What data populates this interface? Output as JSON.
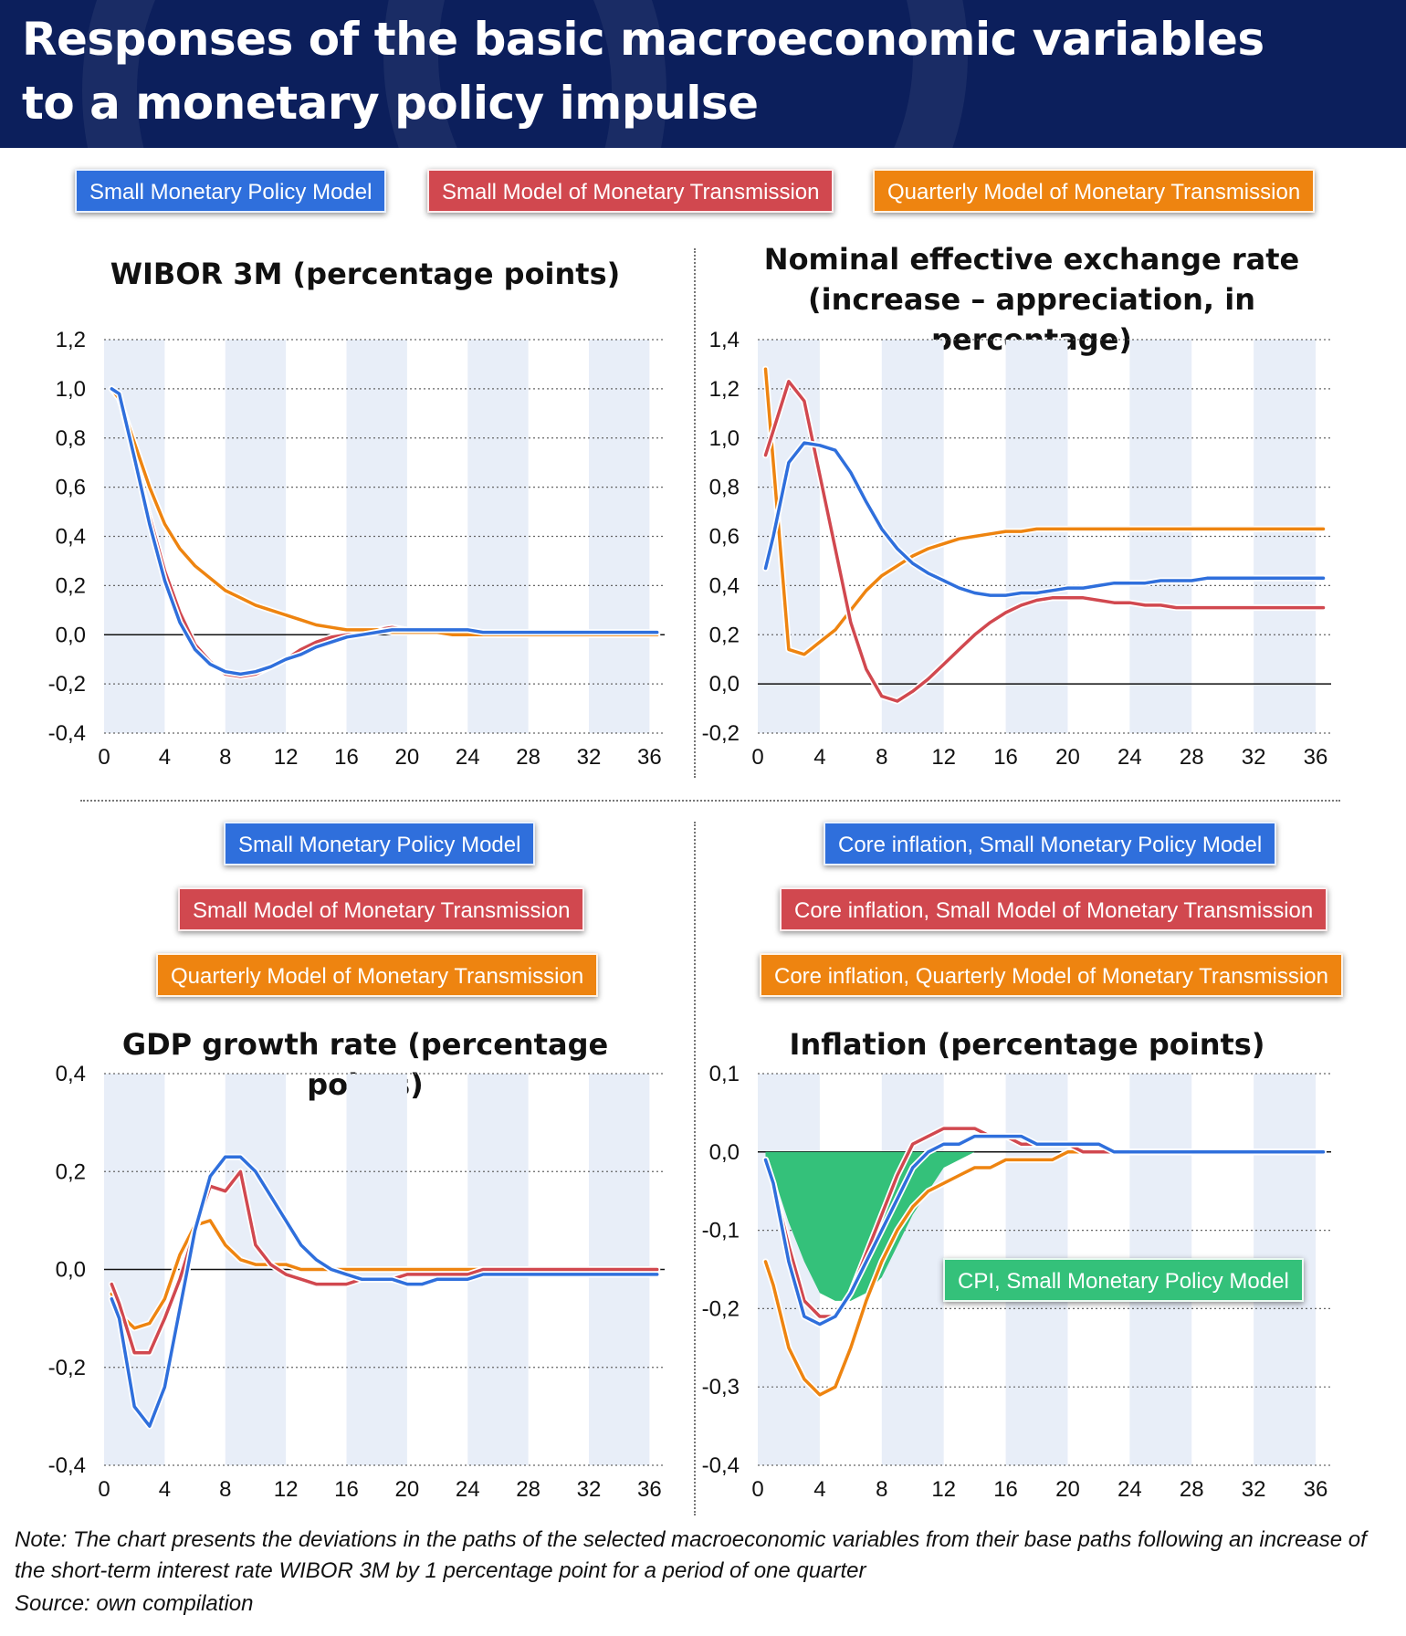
{
  "header": {
    "title_line1": "Responses of the basic macroeconomic variables",
    "title_line2": "to a monetary policy impulse"
  },
  "legend_top": {
    "blue": "Small Monetary Policy Model",
    "red": "Small Model of Monetary Transmission",
    "orange": "Quarterly Model of Monetary Transmission"
  },
  "legend_gdp": {
    "blue": "Small Monetary Policy Model",
    "red": "Small Model of Monetary Transmission",
    "orange": "Quarterly Model of Monetary Transmission"
  },
  "legend_inflation": {
    "blue": "Core inflation, Small Monetary Policy Model",
    "red": "Core inflation, Small Model of Monetary Transmission",
    "orange": "Core inflation, Quarterly Model of Monetary Transmission",
    "green": "CPI, Small Monetary Policy Model"
  },
  "colors": {
    "blue": "#2f6fdc",
    "red": "#d1484f",
    "orange": "#ee8410",
    "green": "#34c17a",
    "band": "#e8eef8",
    "header": "#0c1f5c"
  },
  "footnote": "Note: The chart presents the deviations in the paths of the selected macroeconomic variables from their base paths following an increase of the short-term interest rate WIBOR 3M by 1 percentage point for a period of one quarter",
  "source": "Source: own compilation",
  "chart_data": [
    {
      "id": "wibor",
      "type": "line",
      "title": "WIBOR 3M (percentage points)",
      "xlim": [
        0,
        37
      ],
      "ylim": [
        -0.4,
        1.2
      ],
      "xticks": [
        0,
        4,
        8,
        12,
        16,
        20,
        24,
        28,
        32,
        36
      ],
      "yticks": [
        -0.4,
        -0.2,
        0.0,
        0.2,
        0.4,
        0.6,
        0.8,
        1.0,
        1.2
      ],
      "ytick_labels": [
        "-0,4",
        "-0,2",
        "0,0",
        "0,2",
        "0,4",
        "0,6",
        "0,8",
        "1,0",
        "1,2"
      ],
      "x": [
        0.5,
        1,
        2,
        3,
        4,
        5,
        6,
        7,
        8,
        9,
        10,
        11,
        12,
        13,
        14,
        15,
        16,
        17,
        18,
        19,
        20,
        21,
        22,
        23,
        24,
        25,
        26,
        27,
        28,
        29,
        30,
        31,
        32,
        33,
        34,
        35,
        36,
        36.5
      ],
      "series": [
        {
          "color": "red",
          "values": [
            1.0,
            0.97,
            0.72,
            0.48,
            0.26,
            0.09,
            -0.04,
            -0.11,
            -0.16,
            -0.17,
            -0.16,
            -0.13,
            -0.1,
            -0.06,
            -0.03,
            -0.01,
            0.0,
            0.01,
            0.02,
            0.03,
            0.02,
            0.02,
            0.02,
            0.02,
            0.01,
            0.01,
            0.0,
            0.0,
            0.0,
            0.0,
            0.0,
            0.0,
            0.0,
            0.0,
            0.0,
            0.0,
            0.0,
            0.0
          ]
        },
        {
          "color": "orange",
          "values": [
            1.0,
            0.96,
            0.78,
            0.6,
            0.45,
            0.35,
            0.28,
            0.23,
            0.18,
            0.15,
            0.12,
            0.1,
            0.08,
            0.06,
            0.04,
            0.03,
            0.02,
            0.02,
            0.02,
            0.01,
            0.01,
            0.01,
            0.01,
            0.0,
            0.0,
            0.0,
            0.0,
            0.0,
            0.0,
            0.0,
            0.0,
            0.0,
            0.0,
            0.0,
            0.0,
            0.0,
            0.0,
            0.0
          ]
        },
        {
          "color": "blue",
          "values": [
            1.0,
            0.98,
            0.72,
            0.45,
            0.22,
            0.05,
            -0.06,
            -0.12,
            -0.15,
            -0.16,
            -0.15,
            -0.13,
            -0.1,
            -0.08,
            -0.05,
            -0.03,
            -0.01,
            0.0,
            0.01,
            0.02,
            0.02,
            0.02,
            0.02,
            0.02,
            0.02,
            0.01,
            0.01,
            0.01,
            0.01,
            0.01,
            0.01,
            0.01,
            0.01,
            0.01,
            0.01,
            0.01,
            0.01,
            0.01
          ]
        }
      ]
    },
    {
      "id": "exchange",
      "type": "line",
      "title_line1": "Nominal effective exchange rate",
      "title_line2": "(increase – appreciation, in percentage)",
      "xlim": [
        0,
        37
      ],
      "ylim": [
        -0.2,
        1.4
      ],
      "xticks": [
        0,
        4,
        8,
        12,
        16,
        20,
        24,
        28,
        32,
        36
      ],
      "yticks": [
        -0.2,
        0.0,
        0.2,
        0.4,
        0.6,
        0.8,
        1.0,
        1.2,
        1.4
      ],
      "ytick_labels": [
        "-0,2",
        "0,0",
        "0,2",
        "0,4",
        "0,6",
        "0,8",
        "1,0",
        "1,2",
        "1,4"
      ],
      "x": [
        0.5,
        1,
        2,
        3,
        4,
        5,
        6,
        7,
        8,
        9,
        10,
        11,
        12,
        13,
        14,
        15,
        16,
        17,
        18,
        19,
        20,
        21,
        22,
        23,
        24,
        25,
        26,
        27,
        28,
        29,
        30,
        31,
        32,
        33,
        34,
        35,
        36,
        36.5
      ],
      "series": [
        {
          "color": "orange",
          "values": [
            1.28,
            0.9,
            0.14,
            0.12,
            0.17,
            0.22,
            0.3,
            0.38,
            0.44,
            0.48,
            0.52,
            0.55,
            0.57,
            0.59,
            0.6,
            0.61,
            0.62,
            0.62,
            0.63,
            0.63,
            0.63,
            0.63,
            0.63,
            0.63,
            0.63,
            0.63,
            0.63,
            0.63,
            0.63,
            0.63,
            0.63,
            0.63,
            0.63,
            0.63,
            0.63,
            0.63,
            0.63,
            0.63
          ]
        },
        {
          "color": "red",
          "values": [
            0.93,
            1.03,
            1.23,
            1.15,
            0.85,
            0.55,
            0.25,
            0.06,
            -0.05,
            -0.07,
            -0.03,
            0.02,
            0.08,
            0.14,
            0.2,
            0.25,
            0.29,
            0.32,
            0.34,
            0.35,
            0.35,
            0.35,
            0.34,
            0.33,
            0.33,
            0.32,
            0.32,
            0.31,
            0.31,
            0.31,
            0.31,
            0.31,
            0.31,
            0.31,
            0.31,
            0.31,
            0.31,
            0.31
          ]
        },
        {
          "color": "blue",
          "values": [
            0.47,
            0.6,
            0.9,
            0.98,
            0.97,
            0.95,
            0.86,
            0.74,
            0.63,
            0.55,
            0.49,
            0.45,
            0.42,
            0.39,
            0.37,
            0.36,
            0.36,
            0.37,
            0.37,
            0.38,
            0.39,
            0.39,
            0.4,
            0.41,
            0.41,
            0.41,
            0.42,
            0.42,
            0.42,
            0.43,
            0.43,
            0.43,
            0.43,
            0.43,
            0.43,
            0.43,
            0.43,
            0.43
          ]
        }
      ]
    },
    {
      "id": "gdp",
      "type": "line",
      "title": "GDP growth rate (percentage points)",
      "xlim": [
        0,
        37
      ],
      "ylim": [
        -0.4,
        0.4
      ],
      "xticks": [
        0,
        4,
        8,
        12,
        16,
        20,
        24,
        28,
        32,
        36
      ],
      "yticks": [
        -0.4,
        -0.2,
        0.0,
        0.2,
        0.4
      ],
      "ytick_labels": [
        "-0,4",
        "-0,2",
        "0,0",
        "0,2",
        "0,4"
      ],
      "x": [
        0.5,
        1,
        2,
        3,
        4,
        5,
        6,
        7,
        8,
        9,
        10,
        11,
        12,
        13,
        14,
        15,
        16,
        17,
        18,
        19,
        20,
        21,
        22,
        23,
        24,
        25,
        26,
        27,
        28,
        29,
        30,
        31,
        32,
        33,
        34,
        35,
        36,
        36.5
      ],
      "series": [
        {
          "color": "orange",
          "values": [
            -0.05,
            -0.09,
            -0.12,
            -0.11,
            -0.06,
            0.03,
            0.09,
            0.1,
            0.05,
            0.02,
            0.01,
            0.01,
            0.01,
            0.0,
            0.0,
            0.0,
            0.0,
            0.0,
            0.0,
            0.0,
            0.0,
            0.0,
            0.0,
            0.0,
            0.0,
            0.0,
            0.0,
            0.0,
            0.0,
            0.0,
            0.0,
            0.0,
            0.0,
            0.0,
            0.0,
            0.0,
            0.0,
            0.0
          ]
        },
        {
          "color": "red",
          "values": [
            -0.03,
            -0.07,
            -0.17,
            -0.17,
            -0.1,
            -0.02,
            0.08,
            0.17,
            0.16,
            0.2,
            0.05,
            0.01,
            -0.01,
            -0.02,
            -0.03,
            -0.03,
            -0.03,
            -0.02,
            -0.02,
            -0.02,
            -0.01,
            -0.01,
            -0.01,
            -0.01,
            -0.01,
            0.0,
            0.0,
            0.0,
            0.0,
            0.0,
            0.0,
            0.0,
            0.0,
            0.0,
            0.0,
            0.0,
            0.0,
            0.0
          ]
        },
        {
          "color": "blue",
          "values": [
            -0.06,
            -0.1,
            -0.28,
            -0.32,
            -0.24,
            -0.08,
            0.08,
            0.19,
            0.23,
            0.23,
            0.2,
            0.15,
            0.1,
            0.05,
            0.02,
            0.0,
            -0.01,
            -0.02,
            -0.02,
            -0.02,
            -0.03,
            -0.03,
            -0.02,
            -0.02,
            -0.02,
            -0.01,
            -0.01,
            -0.01,
            -0.01,
            -0.01,
            -0.01,
            -0.01,
            -0.01,
            -0.01,
            -0.01,
            -0.01,
            -0.01,
            -0.01
          ]
        }
      ]
    },
    {
      "id": "inflation",
      "type": "line",
      "title": "Inflation (percentage points)",
      "xlim": [
        0,
        37
      ],
      "ylim": [
        -0.4,
        0.1
      ],
      "xticks": [
        0,
        4,
        8,
        12,
        16,
        20,
        24,
        28,
        32,
        36
      ],
      "yticks": [
        -0.4,
        -0.3,
        -0.2,
        -0.1,
        0.0,
        0.1
      ],
      "ytick_labels": [
        "-0,4",
        "-0,3",
        "-0,2",
        "-0,1",
        "0,0",
        "0,1"
      ],
      "x": [
        0.5,
        1,
        2,
        3,
        4,
        5,
        6,
        7,
        8,
        9,
        10,
        11,
        12,
        13,
        14,
        15,
        16,
        17,
        18,
        19,
        20,
        21,
        22,
        23,
        24,
        25,
        26,
        27,
        28,
        29,
        30,
        31,
        32,
        33,
        34,
        35,
        36,
        36.5
      ],
      "area": {
        "color": "green",
        "values": [
          -0.01,
          -0.03,
          -0.09,
          -0.14,
          -0.18,
          -0.19,
          -0.19,
          -0.18,
          -0.16,
          -0.12,
          -0.08,
          -0.05,
          -0.02,
          -0.01,
          0.0,
          0.0,
          0.0,
          0.0,
          0.0,
          0.0,
          0.0,
          0.0,
          0.0,
          0.0,
          0.0,
          0.0,
          0.0,
          0.0,
          0.0,
          0.0,
          0.0,
          0.0,
          0.0,
          0.0,
          0.0,
          0.0,
          0.0,
          0.0
        ]
      },
      "series": [
        {
          "color": "orange",
          "values": [
            -0.14,
            -0.17,
            -0.25,
            -0.29,
            -0.31,
            -0.3,
            -0.25,
            -0.19,
            -0.14,
            -0.1,
            -0.07,
            -0.05,
            -0.04,
            -0.03,
            -0.02,
            -0.02,
            -0.01,
            -0.01,
            -0.01,
            -0.01,
            0.0,
            0.0,
            0.0,
            0.0,
            0.0,
            0.0,
            0.0,
            0.0,
            0.0,
            0.0,
            0.0,
            0.0,
            0.0,
            0.0,
            0.0,
            0.0,
            0.0,
            0.0
          ]
        },
        {
          "color": "red",
          "values": [
            -0.01,
            -0.04,
            -0.12,
            -0.19,
            -0.21,
            -0.21,
            -0.18,
            -0.13,
            -0.08,
            -0.03,
            0.01,
            0.02,
            0.03,
            0.03,
            0.03,
            0.02,
            0.02,
            0.01,
            0.01,
            0.01,
            0.01,
            0.0,
            0.0,
            0.0,
            0.0,
            0.0,
            0.0,
            0.0,
            0.0,
            0.0,
            0.0,
            0.0,
            0.0,
            0.0,
            0.0,
            0.0,
            0.0,
            0.0
          ]
        },
        {
          "color": "blue",
          "values": [
            -0.01,
            -0.04,
            -0.14,
            -0.21,
            -0.22,
            -0.21,
            -0.18,
            -0.14,
            -0.1,
            -0.06,
            -0.02,
            0.0,
            0.01,
            0.01,
            0.02,
            0.02,
            0.02,
            0.02,
            0.01,
            0.01,
            0.01,
            0.01,
            0.01,
            0.0,
            0.0,
            0.0,
            0.0,
            0.0,
            0.0,
            0.0,
            0.0,
            0.0,
            0.0,
            0.0,
            0.0,
            0.0,
            0.0,
            0.0
          ]
        }
      ]
    }
  ]
}
